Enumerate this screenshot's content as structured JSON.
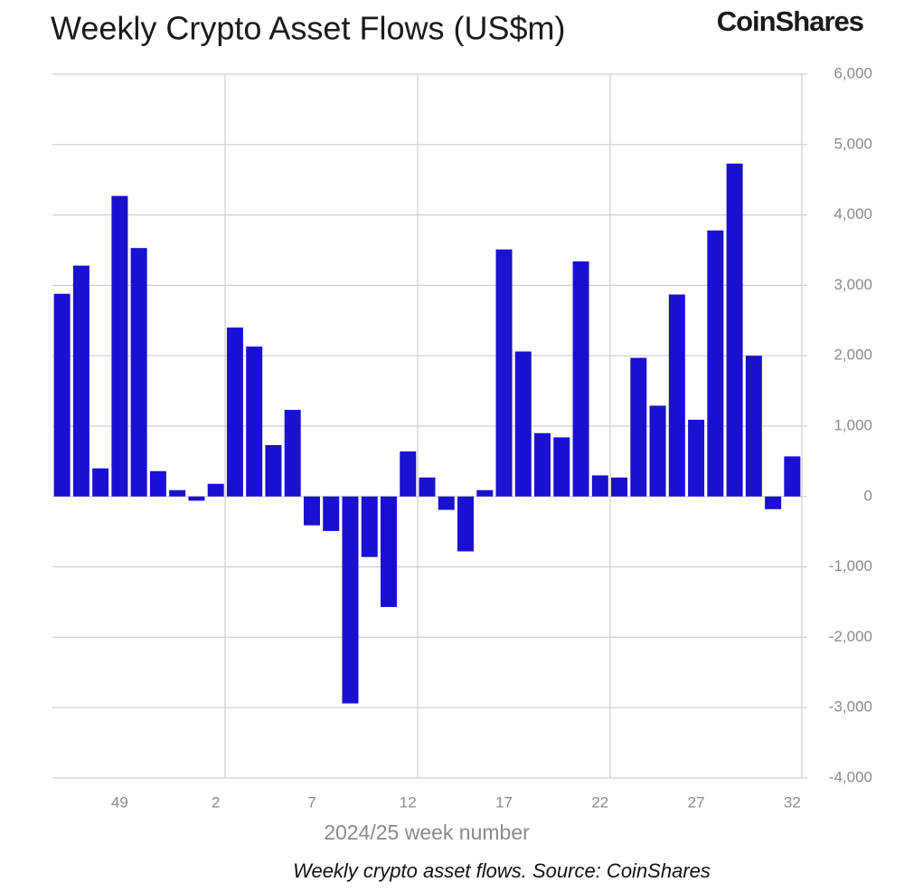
{
  "chart_data": {
    "type": "bar",
    "title": "Weekly Crypto Asset Flows (US$m)",
    "brand": "CoinShares",
    "x_label": "2024/25 week number",
    "caption": "Weekly crypto asset flows. Source: CoinShares",
    "categories": [
      null,
      null,
      null,
      "49",
      null,
      null,
      null,
      null,
      "2",
      null,
      null,
      null,
      null,
      "7",
      null,
      null,
      null,
      null,
      "12",
      null,
      null,
      null,
      null,
      "17",
      null,
      null,
      null,
      null,
      "22",
      null,
      null,
      null,
      null,
      "27",
      null,
      null,
      null,
      null,
      "32"
    ],
    "values": [
      2880,
      3280,
      400,
      4270,
      3530,
      360,
      90,
      -60,
      180,
      2400,
      2130,
      730,
      1230,
      -410,
      -490,
      -2940,
      -860,
      -1570,
      640,
      270,
      -190,
      -780,
      90,
      3510,
      2060,
      900,
      840,
      3340,
      300,
      270,
      1970,
      1290,
      2870,
      1090,
      3780,
      4730,
      2000,
      -180,
      570
    ],
    "color": "#1a10cf",
    "ylim": [
      -4000,
      6000
    ],
    "yticks": [
      {
        "value": -4000,
        "label": "-4,000"
      },
      {
        "value": -3000,
        "label": "-3,000"
      },
      {
        "value": -2000,
        "label": "-2,000"
      },
      {
        "value": -1000,
        "label": "-1,000"
      },
      0,
      {
        "value": 1000,
        "label": "1,000"
      },
      {
        "value": 2000,
        "label": "2,000"
      },
      {
        "value": 3000,
        "label": "3,000"
      },
      {
        "value": 4000,
        "label": "4,000"
      },
      {
        "value": 5000,
        "label": "5,000"
      },
      {
        "value": 6000,
        "label": "6,000"
      }
    ],
    "grid": true
  }
}
